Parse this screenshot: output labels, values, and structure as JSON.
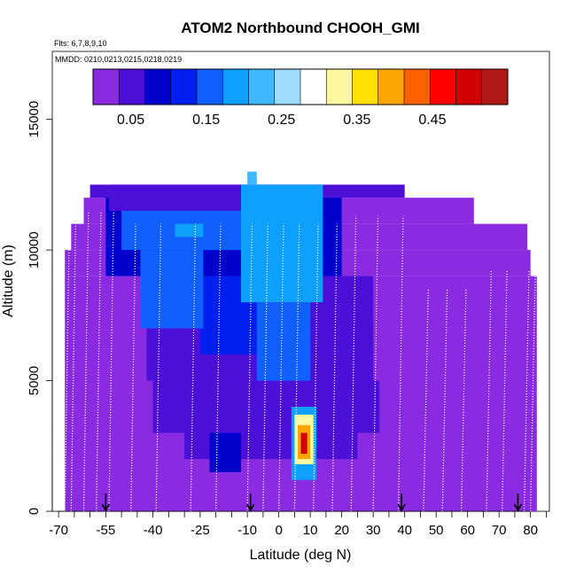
{
  "chart_data": {
    "type": "heatmap",
    "title": "ATOM2 Northbound CHOOH_GMI",
    "flights_label": "Flts: 6,7,8,9,10",
    "dates_label": "MMDD: 0210,0213,0215,0218,0219",
    "xlabel": "Latitude (deg N)",
    "ylabel": "Altitude (m)",
    "xlim": [
      -72,
      86
    ],
    "ylim": [
      0,
      17600
    ],
    "x_ticks": [
      {
        "value": -70,
        "label": "-70"
      },
      {
        "value": -55,
        "label": "-55"
      },
      {
        "value": -40,
        "label": "-40"
      },
      {
        "value": -25,
        "label": "-25"
      },
      {
        "value": -10,
        "label": "-10"
      },
      {
        "value": 0,
        "label": "0"
      },
      {
        "value": 10,
        "label": "10"
      },
      {
        "value": 20,
        "label": "20"
      },
      {
        "value": 30,
        "label": "30"
      },
      {
        "value": 40,
        "label": "40"
      },
      {
        "value": 50,
        "label": "50"
      },
      {
        "value": 60,
        "label": "60"
      },
      {
        "value": 70,
        "label": "70"
      },
      {
        "value": 80,
        "label": "80"
      }
    ],
    "y_ticks": [
      {
        "value": 0,
        "label": "0"
      },
      {
        "value": 5000,
        "label": "5000"
      },
      {
        "value": 10000,
        "label": "10000"
      },
      {
        "value": 15000,
        "label": "15000"
      }
    ],
    "colorbar": {
      "range": [
        0.0,
        0.55
      ],
      "ticks": [
        {
          "value": 0.05,
          "label": "0.05"
        },
        {
          "value": 0.15,
          "label": "0.15"
        },
        {
          "value": 0.25,
          "label": "0.25"
        },
        {
          "value": 0.35,
          "label": "0.35"
        },
        {
          "value": 0.45,
          "label": "0.45"
        }
      ],
      "colors": [
        "#8a2be2",
        "#4b0fd8",
        "#0000cd",
        "#0020f0",
        "#1060ff",
        "#0ea0ff",
        "#40b8ff",
        "#a0dcff",
        "#ffffff",
        "#fff8a0",
        "#ffe000",
        "#ffa500",
        "#ff6000",
        "#ff0000",
        "#d00000",
        "#b01818"
      ]
    },
    "flight_arrows": [
      -55,
      -9,
      39,
      76
    ],
    "vertical_profiles": [
      -68,
      -66,
      -62,
      -58,
      -54,
      -47,
      -39,
      -28,
      -20,
      -10,
      -5,
      0,
      5,
      11,
      17,
      23,
      30,
      38,
      46,
      52,
      58,
      66,
      71,
      78,
      80
    ],
    "cells": [
      {
        "lat": [
          -68,
          82
        ],
        "alt": [
          0,
          1000
        ],
        "v": 0.01
      },
      {
        "lat": [
          -68,
          82
        ],
        "alt": [
          1000,
          9000
        ],
        "v": 0.02
      },
      {
        "lat": [
          -68,
          80
        ],
        "alt": [
          9000,
          10000
        ],
        "v": 0.02
      },
      {
        "lat": [
          -66,
          79
        ],
        "alt": [
          10000,
          11000
        ],
        "v": 0.02
      },
      {
        "lat": [
          -62,
          62
        ],
        "alt": [
          11000,
          12000
        ],
        "v": 0.03
      },
      {
        "lat": [
          -60,
          40
        ],
        "alt": [
          12000,
          12500
        ],
        "v": 0.04
      },
      {
        "lat": [
          -40,
          32
        ],
        "alt": [
          3000,
          5000
        ],
        "v": 0.04
      },
      {
        "lat": [
          -30,
          25
        ],
        "alt": [
          2000,
          3000
        ],
        "v": 0.05
      },
      {
        "lat": [
          -42,
          30
        ],
        "alt": [
          5000,
          9000
        ],
        "v": 0.06
      },
      {
        "lat": [
          -55,
          20
        ],
        "alt": [
          9000,
          12000
        ],
        "v": 0.08
      },
      {
        "lat": [
          -54,
          14
        ],
        "alt": [
          11500,
          12500
        ],
        "v": 0.06
      },
      {
        "lat": [
          -25,
          -5
        ],
        "alt": [
          6000,
          9000
        ],
        "v": 0.12
      },
      {
        "lat": [
          -50,
          -10
        ],
        "alt": [
          10000,
          11500
        ],
        "v": 0.14
      },
      {
        "lat": [
          -44,
          -24
        ],
        "alt": [
          7000,
          10000
        ],
        "v": 0.16
      },
      {
        "lat": [
          -12,
          14
        ],
        "alt": [
          8000,
          12500
        ],
        "v": 0.18
      },
      {
        "lat": [
          -7,
          10
        ],
        "alt": [
          5000,
          8000
        ],
        "v": 0.14
      },
      {
        "lat": [
          -6,
          8
        ],
        "alt": [
          9000,
          12000
        ],
        "v": 0.2
      },
      {
        "lat": [
          -33,
          -24
        ],
        "alt": [
          10500,
          11000
        ],
        "v": 0.2
      },
      {
        "lat": [
          -10,
          -7
        ],
        "alt": [
          12500,
          13000
        ],
        "v": 0.22
      },
      {
        "lat": [
          -22,
          -12
        ],
        "alt": [
          1500,
          3000
        ],
        "v": 0.07
      },
      {
        "lat": [
          4,
          12
        ],
        "alt": [
          1200,
          4000
        ],
        "v": 0.2
      },
      {
        "lat": [
          5,
          11
        ],
        "alt": [
          1800,
          3700
        ],
        "v": 0.32
      },
      {
        "lat": [
          6,
          10
        ],
        "alt": [
          2000,
          3300
        ],
        "v": 0.4
      },
      {
        "lat": [
          7,
          9
        ],
        "alt": [
          2200,
          3000
        ],
        "v": 0.5
      }
    ]
  }
}
